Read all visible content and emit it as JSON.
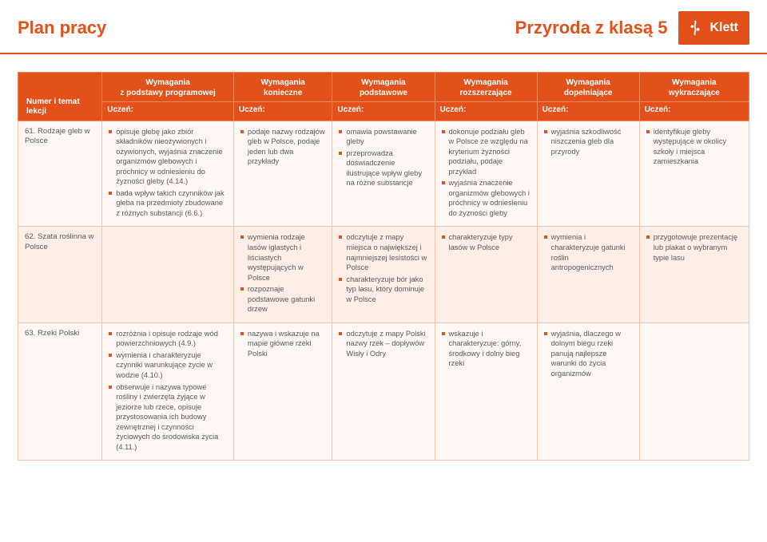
{
  "header": {
    "plan": "Plan pracy",
    "subject": "Przyroda z klasą 5",
    "brand": "Klett"
  },
  "columns": {
    "c0": "Numer i temat lekcji",
    "c1_top": "Wymagania",
    "c1_bot": "z podstawy programowej",
    "c2_top": "Wymagania",
    "c2_bot": "konieczne",
    "c3_top": "Wymagania",
    "c3_bot": "podstawowe",
    "c4_top": "Wymagania",
    "c4_bot": "rozszerzające",
    "c5_top": "Wymagania",
    "c5_bot": "dopełniające",
    "c6_top": "Wymagania",
    "c6_bot": "wykraczające",
    "sub": "Uczeń:"
  },
  "rows": [
    {
      "topic": "61. Rodzaje gleb w Polsce",
      "c1": [
        "opisuje glebę jako zbiór składników nieożywionych i ożywionych, wyjaśnia znaczenie organizmów glebowych i próchnicy w odniesieniu do żyzności gleby (4.14.)",
        "bada wpływ takich czynników jak gleba na przedmioty zbudowane z różnych substancji (6.6.)"
      ],
      "c2": [
        "podaje nazwy rodzajów gleb w Polsce, podaje jeden lub dwa przykłady"
      ],
      "c3": [
        "omawia powstawanie gleby",
        "przeprowadza doświadczenie ilustrujące wpływ gleby na różne substancje"
      ],
      "c4": [
        "dokonuje podziału gleb w Polsce ze względu na kryterium żyzności podziału, podaje przykład",
        "wyjaśnia znaczenie organizmów glebowych i próchnicy w odniesieniu do żyzności gleby"
      ],
      "c5": [
        "wyjaśnia szkodliwość niszczenia gleb dla przyrody"
      ],
      "c6": [
        "identyfikuje gleby występujące w okolicy szkoły i miejsca zamieszkania"
      ]
    },
    {
      "topic": "62. Szata roślinna w Polsce",
      "c1": [],
      "c2": [
        "wymienia rodzaje lasów iglastych i liściastych występujących w Polsce",
        "rozpoznaje podstawowe gatunki drzew"
      ],
      "c3": [
        "odczytuje z mapy miejsca o największej i najmniejszej lesistości w Polsce",
        "charakteryzuje bór jako typ lasu, który dominuje w Polsce"
      ],
      "c4": [
        "charakteryzuje typy lasów w Polsce"
      ],
      "c5": [
        "wymienia i charakteryzuje gatunki roślin antropogenicznych"
      ],
      "c6": [
        "przygotowuje prezentację lub plakat o wybranym typie lasu"
      ]
    },
    {
      "topic": "63. Rzeki Polski",
      "c1": [
        "rozróżnia i opisuje rodzaje wód powierzchniowych (4.9.)",
        "wymienia i charakteryzuje czynniki warunkujące życie w wodzie (4.10.)",
        "obserwuje i nazywa typowe rośliny i zwierzęta żyjące w jeziorze lub rzece, opisuje przystosowania ich budowy zewnętrznej i czynności życiowych do środowiska życia (4.11.)"
      ],
      "c2": [
        "nazywa i wskazuje na mapie główne rzeki Polski"
      ],
      "c3": [
        "odczytuje z mapy Polski nazwy rzek – dopływów Wisły i Odry"
      ],
      "c4": [
        "wskazuje i charakteryzuje: górny, środkowy i dolny bieg rzeki"
      ],
      "c5": [
        "wyjaśnia, dlaczego w dolnym biegu rzeki panują najlepsze warunki do życia organizmów"
      ],
      "c6": []
    }
  ]
}
